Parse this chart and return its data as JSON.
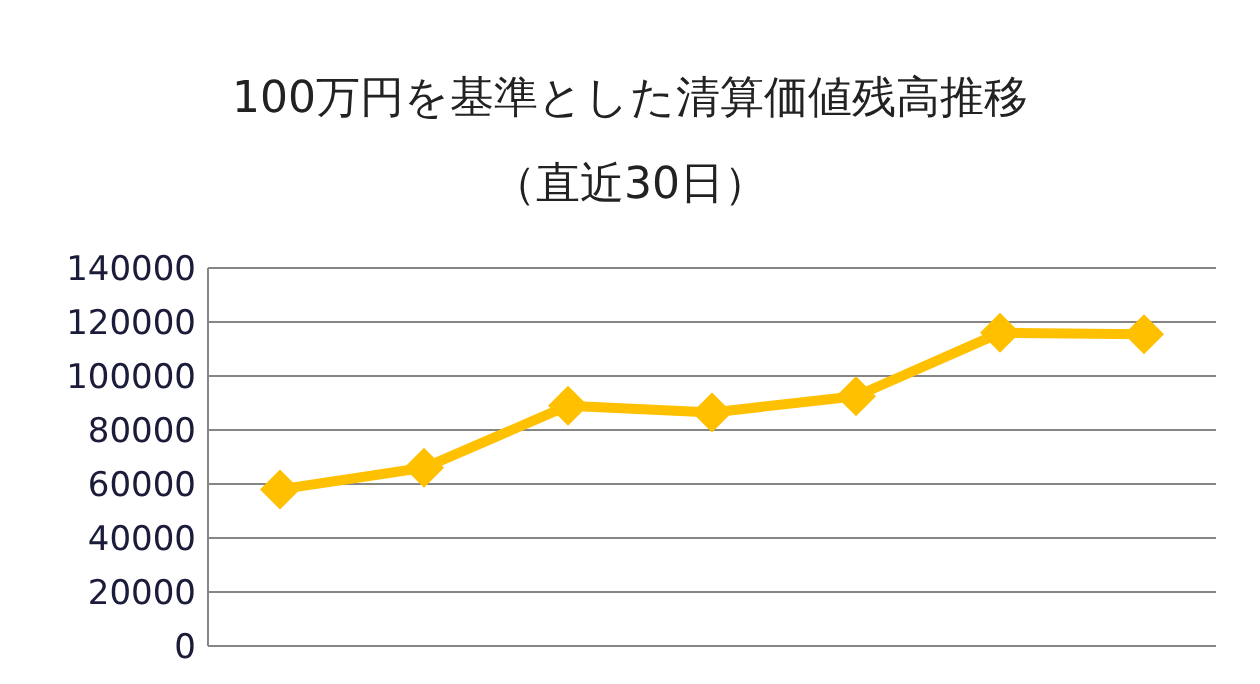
{
  "chart_data": {
    "type": "line",
    "title": "100万円を基準とした清算価値残高推移",
    "subtitle": "（直近30日）",
    "categories": [
      null,
      null,
      null,
      null,
      null,
      null,
      null
    ],
    "series": [
      {
        "color": "#ffc000",
        "values": [
          58000,
          66000,
          89000,
          86500,
          92500,
          116000,
          115500
        ]
      }
    ],
    "ylim": [
      0,
      140000
    ],
    "yticks": [
      0,
      20000,
      40000,
      60000,
      80000,
      100000,
      120000,
      140000
    ],
    "grid": "y",
    "marker": "diamond",
    "line_style": "solid"
  }
}
